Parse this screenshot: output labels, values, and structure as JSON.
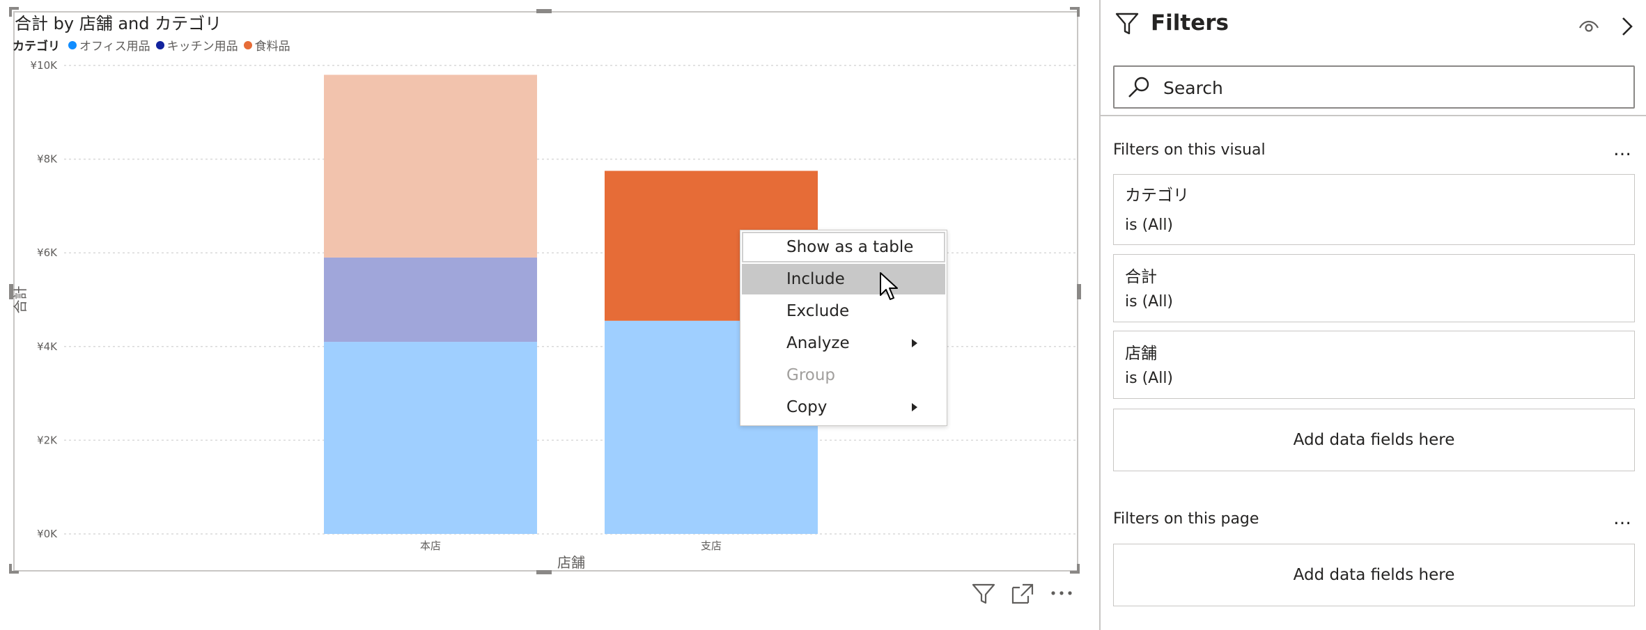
{
  "chart": {
    "title": "合計 by 店舗 and カテゴリ",
    "legend_title": "カテゴリ",
    "ylabel": "合計",
    "xlabel": "店舗"
  },
  "chart_data": {
    "type": "bar",
    "stacked": true,
    "title": "合計 by 店舗 and カテゴリ",
    "xlabel": "店舗",
    "ylabel": "合計",
    "categories": [
      "本店",
      "支店"
    ],
    "series": [
      {
        "name": "オフィス用品",
        "values": [
          4100,
          4550
        ],
        "color": "#9fcfff",
        "legend_color": "#118dff"
      },
      {
        "name": "キッチン用品",
        "values": [
          1800,
          0
        ],
        "color": "#a0a6da",
        "legend_color": "#12239e"
      },
      {
        "name": "食料品",
        "values": [
          3900,
          3200
        ],
        "color": "#f2c3ad",
        "legend_color": "#e66c37"
      }
    ],
    "highlight_colors": [
      "#f2c3ad",
      "#e66c37"
    ],
    "ylim": [
      0,
      10000
    ],
    "yticks": [
      0,
      2000,
      4000,
      6000,
      8000,
      10000
    ],
    "ytick_labels": [
      "¥0K",
      "¥2K",
      "¥4K",
      "¥6K",
      "¥8K",
      "¥10K"
    ],
    "grid": true,
    "legend_position": "top-left"
  },
  "context_menu": {
    "items": [
      {
        "label": "Show as a table"
      },
      {
        "label": "Include"
      },
      {
        "label": "Exclude"
      },
      {
        "label": "Analyze"
      },
      {
        "label": "Group"
      },
      {
        "label": "Copy"
      }
    ]
  },
  "filters_pane": {
    "title": "Filters",
    "search_placeholder": "Search",
    "visual_section": {
      "label": "Filters on this visual",
      "more": "…",
      "cards": [
        {
          "name": "カテゴリ",
          "state": "is (All)"
        },
        {
          "name": "合計",
          "state": "is (All)"
        },
        {
          "name": "店舗",
          "state": "is (All)"
        }
      ],
      "add_label": "Add data fields here"
    },
    "page_section": {
      "label": "Filters on this page",
      "more": "…",
      "add_label": "Add data fields here"
    }
  },
  "icons": {
    "filter": "filter-icon",
    "eye": "eye-icon",
    "chevron": "chevron-right-icon",
    "search": "search-icon",
    "focus": "focus-mode-icon",
    "more": "more-options-icon"
  }
}
